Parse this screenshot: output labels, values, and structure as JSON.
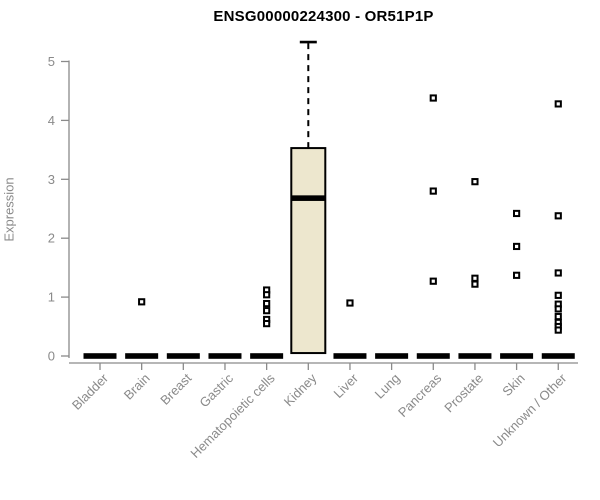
{
  "title": "ENSG00000224300 - OR51P1P",
  "chart_data": {
    "type": "box",
    "title": "ENSG00000224300 - OR51P1P",
    "xlabel": "",
    "ylabel": "Expression",
    "ylim": [
      0,
      5.4
    ],
    "yticks": [
      0,
      1,
      2,
      3,
      4,
      5
    ],
    "grid": false,
    "legend": false,
    "axis_color": "#8a8a8a",
    "box_fill_color": "#EDE7CE",
    "box_line_color": "#000000",
    "categories": [
      "Bladder",
      "Brain",
      "Breast",
      "Gastric",
      "Hematopoietic cells",
      "Kidney",
      "Liver",
      "Lung",
      "Pancreas",
      "Prostate",
      "Skin",
      "Unknown / Other"
    ],
    "boxes": [
      {
        "category": "Bladder",
        "whisker_low": 0,
        "q1": 0,
        "median": 0,
        "q3": 0,
        "whisker_high": 0,
        "outliers": []
      },
      {
        "category": "Brain",
        "whisker_low": 0,
        "q1": 0,
        "median": 0,
        "q3": 0,
        "whisker_high": 0,
        "outliers": [
          0.92
        ]
      },
      {
        "category": "Breast",
        "whisker_low": 0,
        "q1": 0,
        "median": 0,
        "q3": 0,
        "whisker_high": 0,
        "outliers": []
      },
      {
        "category": "Gastric",
        "whisker_low": 0,
        "q1": 0,
        "median": 0,
        "q3": 0,
        "whisker_high": 0,
        "outliers": []
      },
      {
        "category": "Hematopoietic cells",
        "whisker_low": 0,
        "q1": 0,
        "median": 0,
        "q3": 0,
        "whisker_high": 0,
        "outliers": [
          1.12,
          1.04,
          0.89,
          0.77,
          0.62,
          0.55
        ]
      },
      {
        "category": "Kidney",
        "whisker_low": 0,
        "q1": 0.05,
        "median": 2.68,
        "q3": 3.53,
        "whisker_high": 5.33,
        "outliers": []
      },
      {
        "category": "Liver",
        "whisker_low": 0,
        "q1": 0,
        "median": 0,
        "q3": 0,
        "whisker_high": 0,
        "outliers": [
          0.9
        ]
      },
      {
        "category": "Lung",
        "whisker_low": 0,
        "q1": 0,
        "median": 0,
        "q3": 0,
        "whisker_high": 0,
        "outliers": []
      },
      {
        "category": "Pancreas",
        "whisker_low": 0,
        "q1": 0,
        "median": 0,
        "q3": 0,
        "whisker_high": 0,
        "outliers": [
          4.38,
          2.8,
          1.27
        ]
      },
      {
        "category": "Prostate",
        "whisker_low": 0,
        "q1": 0,
        "median": 0,
        "q3": 0,
        "whisker_high": 0,
        "outliers": [
          2.96,
          1.32,
          1.22
        ]
      },
      {
        "category": "Skin",
        "whisker_low": 0,
        "q1": 0,
        "median": 0,
        "q3": 0,
        "whisker_high": 0,
        "outliers": [
          2.42,
          1.86,
          1.37
        ]
      },
      {
        "category": "Unknown / Other",
        "whisker_low": 0,
        "q1": 0,
        "median": 0,
        "q3": 0,
        "whisker_high": 0,
        "outliers": [
          4.28,
          2.38,
          1.41,
          1.03,
          0.88,
          0.8,
          0.67,
          0.57,
          0.5,
          0.44
        ]
      }
    ]
  }
}
